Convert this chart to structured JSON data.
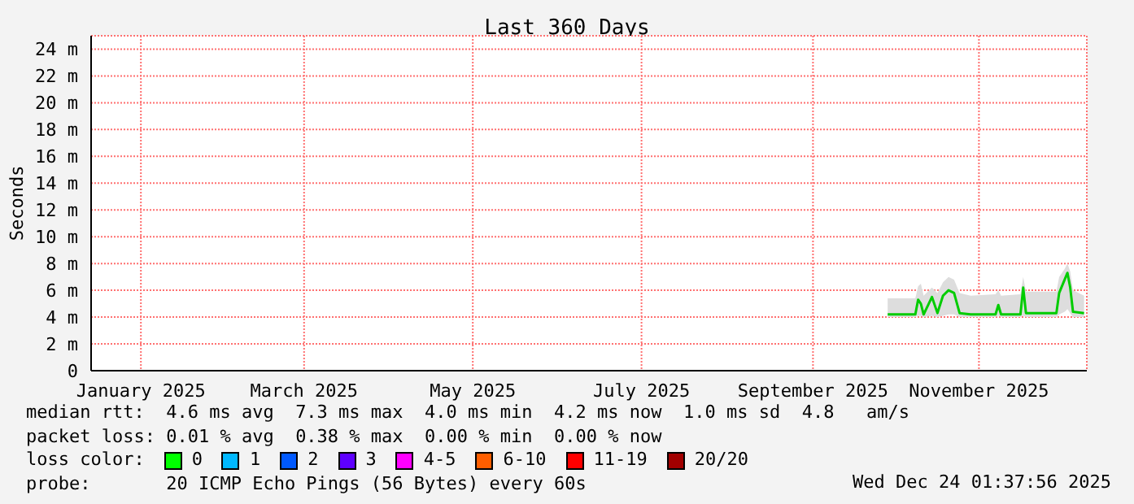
{
  "chart_data": {
    "type": "line",
    "title": "Last 360 Days",
    "ylabel": "Seconds",
    "x": [
      "2025-10-13",
      "2025-10-23",
      "2025-10-24",
      "2025-10-25",
      "2025-10-26",
      "2025-10-29",
      "2025-10-31",
      "2025-11-02",
      "2025-11-04",
      "2025-11-06",
      "2025-11-08",
      "2025-11-12",
      "2025-11-21",
      "2025-11-22",
      "2025-11-23",
      "2025-11-30",
      "2025-12-01",
      "2025-12-02",
      "2025-12-13",
      "2025-12-14",
      "2025-12-16",
      "2025-12-17",
      "2025-12-18",
      "2025-12-19",
      "2025-12-23"
    ],
    "series": [
      {
        "color": "#00cc00",
        "values": [
          4.2,
          4.2,
          5.3,
          5.0,
          4.2,
          5.5,
          4.3,
          5.6,
          6.0,
          5.8,
          4.3,
          4.2,
          4.2,
          4.9,
          4.2,
          4.2,
          6.2,
          4.3,
          4.3,
          5.8,
          6.8,
          7.3,
          6.2,
          4.4,
          4.3
        ],
        "lower": [
          4.0,
          4.0,
          4.1,
          4.1,
          4.0,
          4.1,
          4.0,
          4.1,
          4.2,
          4.2,
          4.0,
          4.0,
          4.0,
          4.1,
          4.0,
          4.0,
          4.1,
          4.0,
          4.0,
          4.2,
          4.4,
          4.6,
          4.3,
          4.0,
          4.0
        ],
        "upper": [
          5.4,
          5.4,
          6.3,
          6.5,
          5.6,
          6.2,
          5.8,
          6.6,
          7.0,
          6.8,
          5.8,
          5.6,
          5.7,
          6.0,
          5.6,
          5.7,
          7.0,
          5.9,
          5.9,
          7.0,
          7.6,
          8.0,
          7.4,
          6.0,
          5.6
        ]
      }
    ],
    "xlim": [
      "2024-12-29",
      "2025-12-24"
    ],
    "xticks": [
      {
        "value": "2025-01-16",
        "label": "January 2025"
      },
      {
        "value": "2025-03-16",
        "label": "March 2025"
      },
      {
        "value": "2025-05-16",
        "label": "May 2025"
      },
      {
        "value": "2025-07-16",
        "label": "July 2025"
      },
      {
        "value": "2025-09-16",
        "label": "September 2025"
      },
      {
        "value": "2025-11-15",
        "label": "November 2025"
      }
    ],
    "ylim": [
      0,
      25
    ],
    "yticks": [
      0,
      {
        "value": 2,
        "label": "2 m"
      },
      {
        "value": 4,
        "label": "4 m"
      },
      {
        "value": 6,
        "label": "6 m"
      },
      {
        "value": 8,
        "label": "8 m"
      },
      {
        "value": 10,
        "label": "10 m"
      },
      {
        "value": 12,
        "label": "12 m"
      },
      {
        "value": 14,
        "label": "14 m"
      },
      {
        "value": 16,
        "label": "16 m"
      },
      {
        "value": 18,
        "label": "18 m"
      },
      {
        "value": 20,
        "label": "20 m"
      },
      {
        "value": 22,
        "label": "22 m"
      },
      {
        "value": 24,
        "label": "24 m"
      }
    ],
    "grid": true,
    "annotations": [
      "median rtt:  4.6 ms avg  7.3 ms max  4.0 ms min  4.2 ms now  1.0 ms sd  4.8   am/s",
      "packet loss: 0.01 % avg  0.38 % max  0.00 % min  0.00 % now",
      "loss color:",
      "0",
      "1",
      "2",
      "3",
      "4-5",
      "6-10",
      "11-19",
      "20/20",
      "probe:       20 ICMP Echo Pings (56 Bytes) every 60s",
      "Wed Dec 24 01:37:56 2025"
    ]
  }
}
